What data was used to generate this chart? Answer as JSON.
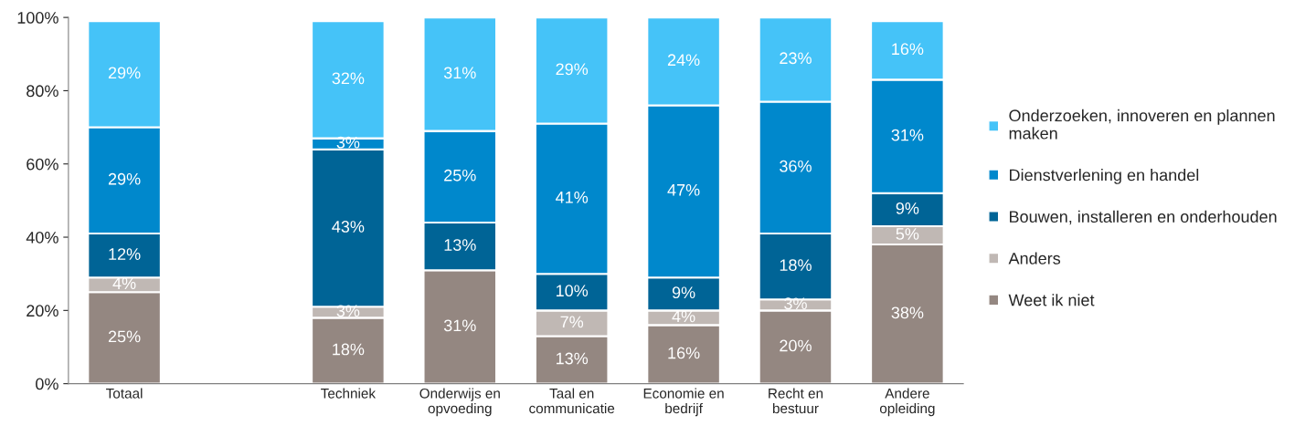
{
  "chart_data": {
    "type": "bar",
    "stacked": true,
    "categories": [
      "Totaal",
      null,
      "Techniek",
      "Onderwijs en\nopvoeding",
      "Taal en\ncommunicatie",
      "Economie en\nbedrijf",
      "Recht en\nbestuur",
      "Andere\nopleiding"
    ],
    "series": [
      {
        "name": "Weet ik niet",
        "color": "#948781",
        "values": [
          25,
          null,
          18,
          31,
          13,
          16,
          20,
          38
        ],
        "value_labels": [
          "25%",
          null,
          "18%",
          "31%",
          "13%",
          "16%",
          "20%",
          "38%"
        ]
      },
      {
        "name": "Anders",
        "color": "#c0b8b4",
        "values": [
          4,
          null,
          3,
          0,
          7,
          4,
          3,
          5
        ],
        "value_labels": [
          "4%",
          null,
          "3%",
          null,
          "7%",
          "4%",
          "3%",
          "5%"
        ]
      },
      {
        "name": "Bouwen, installeren en onderhouden",
        "color": "#006496",
        "values": [
          12,
          null,
          43,
          13,
          10,
          9,
          18,
          9
        ],
        "value_labels": [
          "12%",
          null,
          "43%",
          "13%",
          "10%",
          "9%",
          "18%",
          "9%"
        ]
      },
      {
        "name": "Dienstverlening en handel",
        "color": "#0088cc",
        "values": [
          29,
          null,
          3,
          25,
          41,
          47,
          36,
          31
        ],
        "value_labels": [
          "29%",
          null,
          "3%",
          "25%",
          "41%",
          "47%",
          "36%",
          "31%"
        ]
      },
      {
        "name": "Onderzoeken, innoveren en plannen\nmaken",
        "color": "#45c3f8",
        "values": [
          29,
          null,
          32,
          31,
          29,
          24,
          23,
          16
        ],
        "value_labels": [
          "29%",
          null,
          "32%",
          "31%",
          "29%",
          "24%",
          "23%",
          "16%"
        ]
      }
    ],
    "ylim": [
      0,
      100
    ],
    "yticks": [
      {
        "value": 0,
        "label": "0%"
      },
      {
        "value": 20,
        "label": "20%"
      },
      {
        "value": 40,
        "label": "40%"
      },
      {
        "value": 60,
        "label": "60%"
      },
      {
        "value": 80,
        "label": "80%"
      },
      {
        "value": 100,
        "label": "100%"
      }
    ],
    "legend": "right",
    "grid": false
  }
}
